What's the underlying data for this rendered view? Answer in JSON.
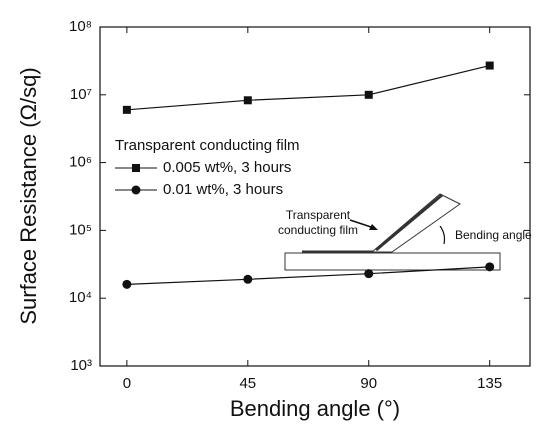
{
  "chart_data": {
    "type": "line",
    "x_label": "Bending angle (°)",
    "y_label": "Surface Resistance (Ω/sq)",
    "x": [
      0,
      45,
      90,
      135
    ],
    "xlim": [
      -10,
      150
    ],
    "xticks": [
      0,
      45,
      90,
      135
    ],
    "ylim": [
      1000,
      100000000
    ],
    "yscale": "log",
    "yticks": [
      {
        "value": 1000,
        "label": "10³"
      },
      {
        "value": 10000,
        "label": "10⁴"
      },
      {
        "value": 100000,
        "label": "10⁵"
      },
      {
        "value": 1000000,
        "label": "10⁶"
      },
      {
        "value": 10000000,
        "label": "10⁷"
      },
      {
        "value": 100000000,
        "label": "10⁸"
      }
    ],
    "legend_title": "Transparent conducting film",
    "series": [
      {
        "name": "0.005 wt%, 3 hours",
        "color": "#111111",
        "marker": "square",
        "values": [
          6000000,
          8300000,
          10000000,
          27000000
        ]
      },
      {
        "name": "0.01 wt%, 3 hours",
        "color": "#111111",
        "marker": "circle",
        "values": [
          16000,
          19000,
          23000,
          29000
        ]
      }
    ],
    "annotations": [
      "Transparent",
      "conducting film",
      "Bending angle"
    ]
  }
}
